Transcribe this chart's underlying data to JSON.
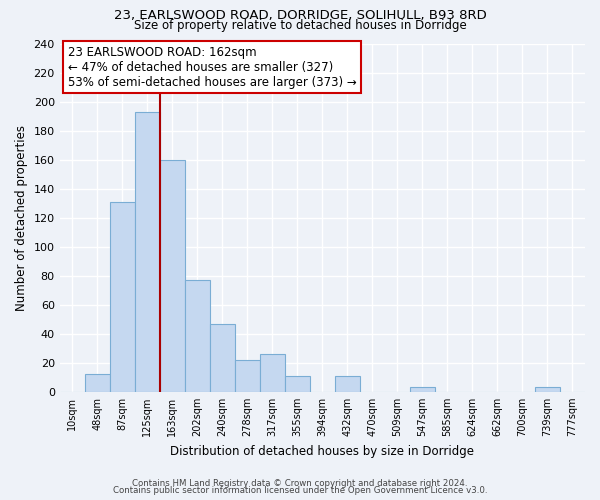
{
  "title": "23, EARLSWOOD ROAD, DORRIDGE, SOLIHULL, B93 8RD",
  "subtitle": "Size of property relative to detached houses in Dorridge",
  "xlabel": "Distribution of detached houses by size in Dorridge",
  "ylabel": "Number of detached properties",
  "bar_labels": [
    "10sqm",
    "48sqm",
    "87sqm",
    "125sqm",
    "163sqm",
    "202sqm",
    "240sqm",
    "278sqm",
    "317sqm",
    "355sqm",
    "394sqm",
    "432sqm",
    "470sqm",
    "509sqm",
    "547sqm",
    "585sqm",
    "624sqm",
    "662sqm",
    "700sqm",
    "739sqm",
    "777sqm"
  ],
  "bar_values": [
    0,
    12,
    131,
    193,
    160,
    77,
    47,
    22,
    26,
    11,
    0,
    11,
    0,
    0,
    3,
    0,
    0,
    0,
    0,
    3,
    0
  ],
  "bar_color": "#c5d8f0",
  "bar_edge_color": "#7aadd4",
  "vline_x_index": 4,
  "vline_color": "#aa0000",
  "annotation_title": "23 EARLSWOOD ROAD: 162sqm",
  "annotation_line1": "← 47% of detached houses are smaller (327)",
  "annotation_line2": "53% of semi-detached houses are larger (373) →",
  "annotation_box_color": "#ffffff",
  "annotation_box_edge": "#cc0000",
  "ylim": [
    0,
    240
  ],
  "yticks": [
    0,
    20,
    40,
    60,
    80,
    100,
    120,
    140,
    160,
    180,
    200,
    220,
    240
  ],
  "footer_line1": "Contains HM Land Registry data © Crown copyright and database right 2024.",
  "footer_line2": "Contains public sector information licensed under the Open Government Licence v3.0.",
  "bg_color": "#eef2f8"
}
